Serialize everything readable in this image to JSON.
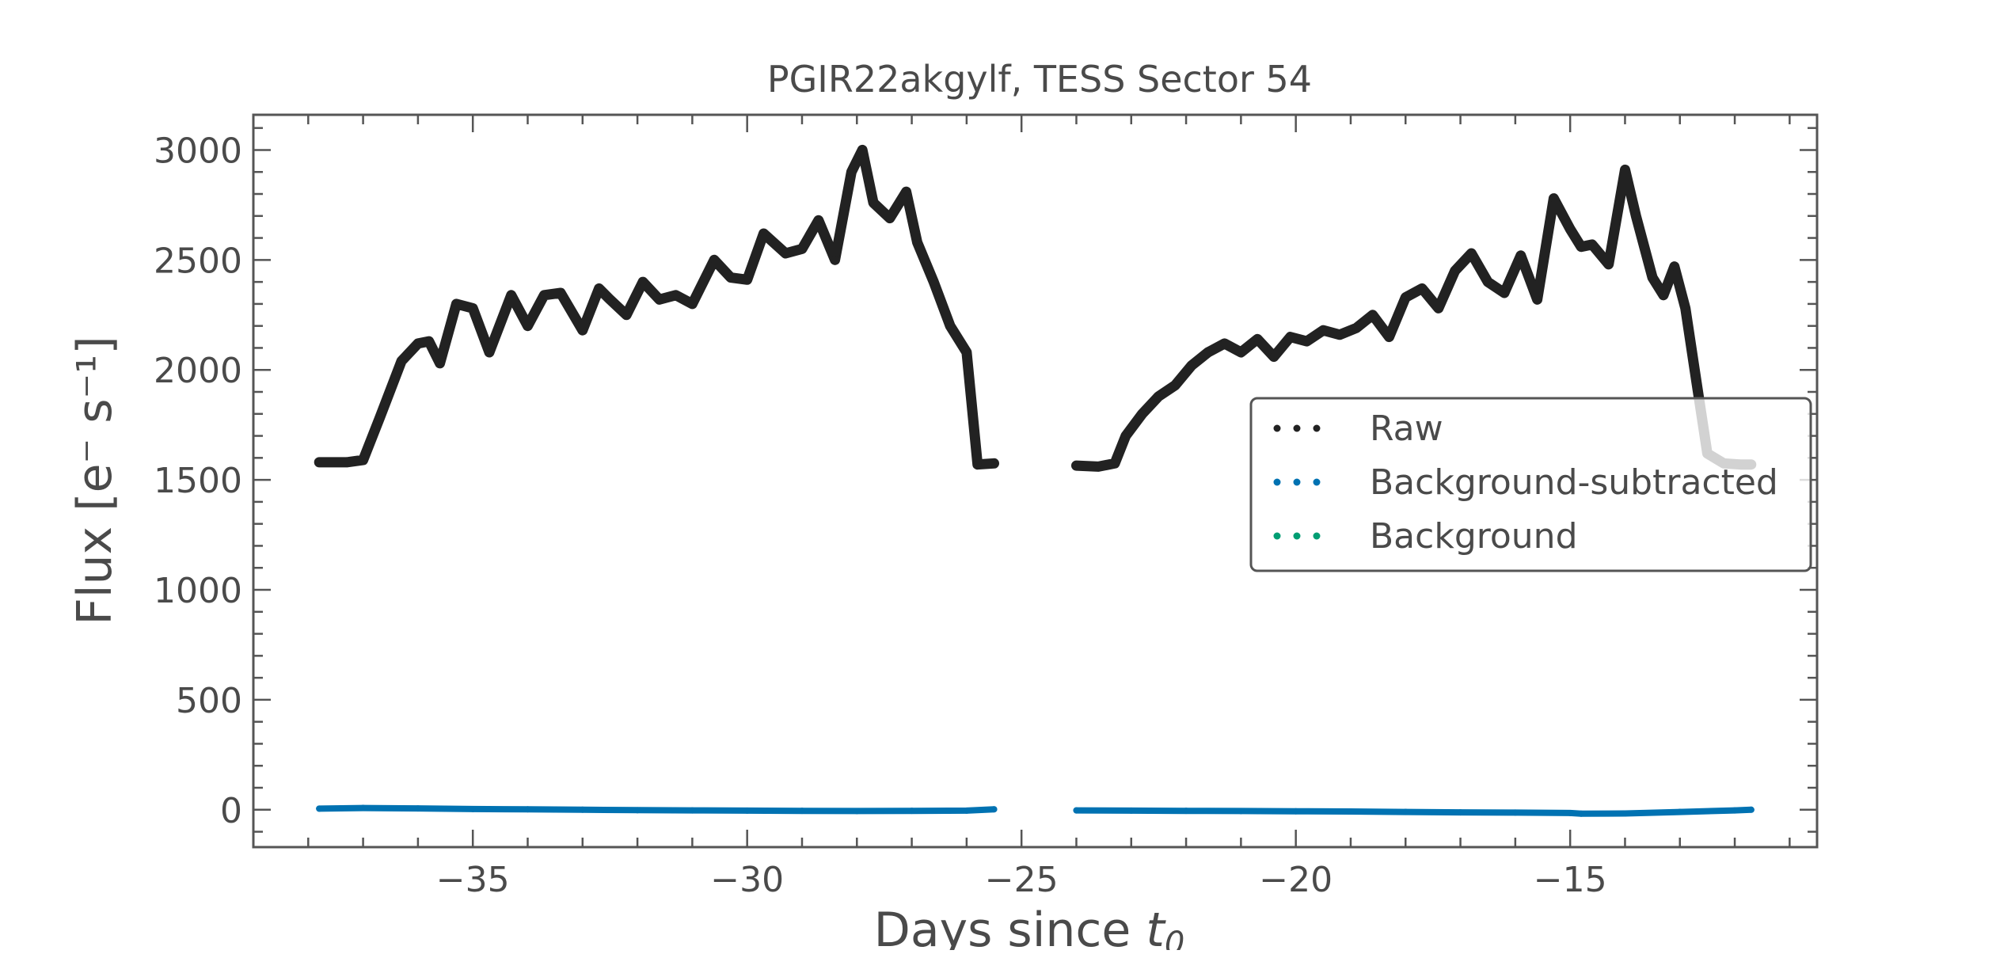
{
  "chart_data": {
    "type": "scatter",
    "title": "PGIR22akgylf, TESS Sector 54",
    "xlabel": "Days since t0",
    "ylabel": "Flux [e⁻ s⁻¹]",
    "xlim": [
      -39.0,
      -10.5
    ],
    "ylim": [
      -170,
      3160
    ],
    "x_ticks": [
      -35,
      -30,
      -25,
      -20,
      -15
    ],
    "x_tick_labels": [
      "−35",
      "−30",
      "−25",
      "−20",
      "−15"
    ],
    "y_ticks": [
      0,
      500,
      1000,
      1500,
      2000,
      2500,
      3000
    ],
    "y_tick_labels": [
      "0",
      "500",
      "1000",
      "1500",
      "2000",
      "2500",
      "3000"
    ],
    "grid": false,
    "legend_position": "center-right",
    "series": [
      {
        "name": "Raw",
        "color": "#222222",
        "x": [
          -37.8,
          -37.3,
          -37.0,
          -36.7,
          -36.3,
          -36.0,
          -35.8,
          -35.6,
          -35.3,
          -35.0,
          -34.7,
          -34.3,
          -34.0,
          -33.7,
          -33.4,
          -33.0,
          -32.7,
          -32.5,
          -32.2,
          -31.9,
          -31.6,
          -31.3,
          -31.0,
          -30.6,
          -30.3,
          -30.0,
          -29.7,
          -29.3,
          -29.0,
          -28.7,
          -28.4,
          -28.1,
          -27.9,
          -27.7,
          -27.4,
          -27.1,
          -26.9,
          -26.6,
          -26.3,
          -26.0,
          -25.8,
          -25.5,
          -24.0,
          -23.6,
          -23.3,
          -23.1,
          -22.8,
          -22.5,
          -22.2,
          -21.9,
          -21.6,
          -21.3,
          -21.0,
          -20.7,
          -20.4,
          -20.1,
          -19.8,
          -19.5,
          -19.2,
          -18.9,
          -18.6,
          -18.3,
          -18.0,
          -17.7,
          -17.4,
          -17.1,
          -16.8,
          -16.5,
          -16.2,
          -15.9,
          -15.6,
          -15.3,
          -15.0,
          -14.8,
          -14.6,
          -14.3,
          -14.0,
          -13.8,
          -13.5,
          -13.3,
          -13.1,
          -12.9,
          -12.7,
          -12.5,
          -12.2,
          -11.9,
          -11.7
        ],
        "y": [
          1580,
          1580,
          1590,
          1780,
          2040,
          2120,
          2130,
          2030,
          2300,
          2280,
          2080,
          2340,
          2200,
          2340,
          2350,
          2180,
          2370,
          2320,
          2250,
          2400,
          2320,
          2340,
          2300,
          2500,
          2420,
          2410,
          2620,
          2530,
          2550,
          2680,
          2500,
          2900,
          3000,
          2760,
          2690,
          2810,
          2580,
          2400,
          2200,
          2080,
          1570,
          1575,
          1565,
          1560,
          1575,
          1700,
          1800,
          1880,
          1930,
          2020,
          2080,
          2120,
          2080,
          2140,
          2060,
          2150,
          2130,
          2180,
          2160,
          2190,
          2250,
          2150,
          2330,
          2370,
          2280,
          2450,
          2530,
          2400,
          2350,
          2520,
          2320,
          2780,
          2640,
          2560,
          2570,
          2480,
          2910,
          2700,
          2420,
          2340,
          2470,
          2280,
          1950,
          1620,
          1575,
          1570,
          1570
        ]
      },
      {
        "name": "Background-subtracted",
        "color": "#0072b2",
        "x": [
          -37.8,
          -37.0,
          -36.0,
          -35.0,
          -34.0,
          -33.0,
          -32.0,
          -31.0,
          -30.0,
          -29.0,
          -28.0,
          -27.0,
          -26.0,
          -25.5,
          -24.0,
          -23.0,
          -22.0,
          -21.0,
          -20.0,
          -19.0,
          -18.0,
          -17.0,
          -16.0,
          -15.0,
          -14.8,
          -14.0,
          -13.0,
          -12.0,
          -11.7
        ],
        "y": [
          5,
          8,
          6,
          3,
          2,
          0,
          -2,
          -3,
          -4,
          -5,
          -6,
          -5,
          -4,
          2,
          -3,
          -4,
          -5,
          -6,
          -7,
          -8,
          -10,
          -12,
          -13,
          -15,
          -18,
          -17,
          -10,
          -3,
          0
        ]
      },
      {
        "name": "Background",
        "color": "#009e73",
        "x": [
          -37.8,
          -37.3,
          -37.0,
          -36.7,
          -36.3,
          -36.0,
          -35.8,
          -35.6,
          -35.3,
          -35.0,
          -34.7,
          -34.3,
          -34.0,
          -33.7,
          -33.4,
          -33.0,
          -32.7,
          -32.5,
          -32.2,
          -31.9,
          -31.6,
          -31.3,
          -31.0,
          -30.6,
          -30.3,
          -30.0,
          -29.7,
          -29.3,
          -29.0,
          -28.7,
          -28.4,
          -28.1,
          -27.9,
          -27.7,
          -27.4,
          -27.1,
          -26.9,
          -26.6,
          -26.3,
          -26.0,
          -25.8,
          -25.5,
          -24.0,
          -23.6,
          -23.3,
          -23.1,
          -22.8,
          -22.5,
          -22.2,
          -21.9,
          -21.6,
          -21.3,
          -21.0,
          -20.7,
          -20.4,
          -20.1,
          -19.8,
          -19.5,
          -19.2,
          -18.9,
          -18.6,
          -18.3,
          -18.0,
          -17.7,
          -17.4,
          -17.1,
          -16.8,
          -16.5,
          -16.2,
          -15.9,
          -15.6,
          -15.3,
          -15.0,
          -14.8,
          -14.6,
          -14.3,
          -14.0,
          -13.8,
          -13.5,
          -13.3,
          -13.1,
          -12.9,
          -12.7,
          -12.5,
          -12.2,
          -11.9,
          -11.7
        ],
        "y": [
          1580,
          1580,
          1590,
          1780,
          2040,
          2120,
          2130,
          2030,
          2300,
          2280,
          2080,
          2340,
          2200,
          2340,
          2350,
          2180,
          2370,
          2320,
          2250,
          2400,
          2320,
          2340,
          2300,
          2500,
          2420,
          2410,
          2620,
          2530,
          2550,
          2680,
          2500,
          2900,
          3000,
          2760,
          2690,
          2810,
          2580,
          2400,
          2200,
          2080,
          1570,
          1575,
          1565,
          1560,
          1575,
          1700,
          1800,
          1880,
          1930,
          2020,
          2080,
          2120,
          2080,
          2140,
          2060,
          2150,
          2130,
          2180,
          2160,
          2190,
          2250,
          2150,
          2330,
          2370,
          2280,
          2450,
          2530,
          2400,
          2350,
          2520,
          2320,
          2780,
          2640,
          2560,
          2570,
          2480,
          2910,
          2700,
          2420,
          2340,
          2470,
          2280,
          1950,
          1620,
          1575,
          1570,
          1570
        ]
      }
    ]
  }
}
